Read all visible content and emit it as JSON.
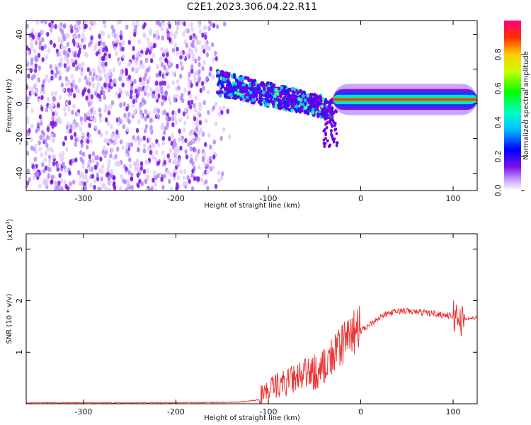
{
  "title": "C2E1.2023.306.04.22.R11",
  "chart_data": [
    {
      "type": "heatmap",
      "xlabel": "Height of straight line (km)",
      "ylabel": "Frequency (Hz)",
      "xlim": [
        -362,
        126
      ],
      "ylim": [
        -50,
        48
      ],
      "xticks": [
        -300,
        -200,
        -100,
        0,
        100
      ],
      "yticks": [
        -40,
        -20,
        0,
        20,
        40
      ],
      "xtick_labels": [
        "-300",
        "-200",
        "-100",
        "0",
        "100"
      ],
      "ytick_labels": [
        "-40",
        "-20",
        "0",
        "20",
        "40"
      ],
      "colorbar": {
        "label": "Normalized spectral amplitude",
        "range": [
          0,
          1
        ],
        "ticks": [
          0.0,
          0.2,
          0.4,
          0.6,
          0.8
        ],
        "tick_labels": [
          "0.0",
          "0.2",
          "0.4",
          "0.6",
          "0.8"
        ]
      },
      "regions": [
        {
          "x": [
            -362,
            -140
          ],
          "y": [
            -50,
            48
          ],
          "level": 0.15
        },
        {
          "x": [
            -155,
            -30
          ],
          "y_center": [
            12,
            -3
          ],
          "y_halfwidth": [
            7,
            6
          ],
          "level": 0.4
        },
        {
          "x": [
            -30,
            126
          ],
          "y_center": [
            2,
            3
          ],
          "y_halfwidth": [
            3,
            3
          ],
          "level": 0.7
        }
      ]
    },
    {
      "type": "line",
      "xlabel": "Height of straight line (km)",
      "ylabel": "SNR (10 * v/v)",
      "y_scale_note": "(x10",
      "y_scale_exp": "4",
      "y_scale_close": ")",
      "xlim": [
        -362,
        126
      ],
      "ylim": [
        0,
        3.3
      ],
      "xticks": [
        -300,
        -200,
        -100,
        0,
        100
      ],
      "yticks": [
        1,
        2,
        3
      ],
      "xtick_labels": [
        "-300",
        "-200",
        "-100",
        "0",
        "100"
      ],
      "ytick_labels": [
        "1",
        "2",
        "3"
      ],
      "color": "#ee3333",
      "series": [
        {
          "x": [
            -362,
            -200,
            -130,
            -110,
            -100,
            -90,
            -80,
            -70,
            -60,
            -50,
            -40,
            -30,
            -25,
            -20,
            -15,
            -10,
            -5,
            0,
            10,
            20,
            30,
            40,
            50,
            60,
            70,
            80,
            90,
            100,
            105,
            110,
            112,
            115,
            120,
            126
          ],
          "y": [
            0.02,
            0.02,
            0.03,
            0.08,
            0.2,
            0.3,
            0.33,
            0.4,
            0.45,
            0.5,
            0.6,
            0.8,
            0.9,
            1.0,
            1.1,
            1.25,
            1.3,
            1.4,
            1.55,
            1.68,
            1.75,
            1.8,
            1.8,
            1.78,
            1.77,
            1.75,
            1.72,
            1.7,
            1.7,
            1.6,
            1.65,
            1.65,
            1.66,
            1.67
          ]
        }
      ]
    }
  ]
}
